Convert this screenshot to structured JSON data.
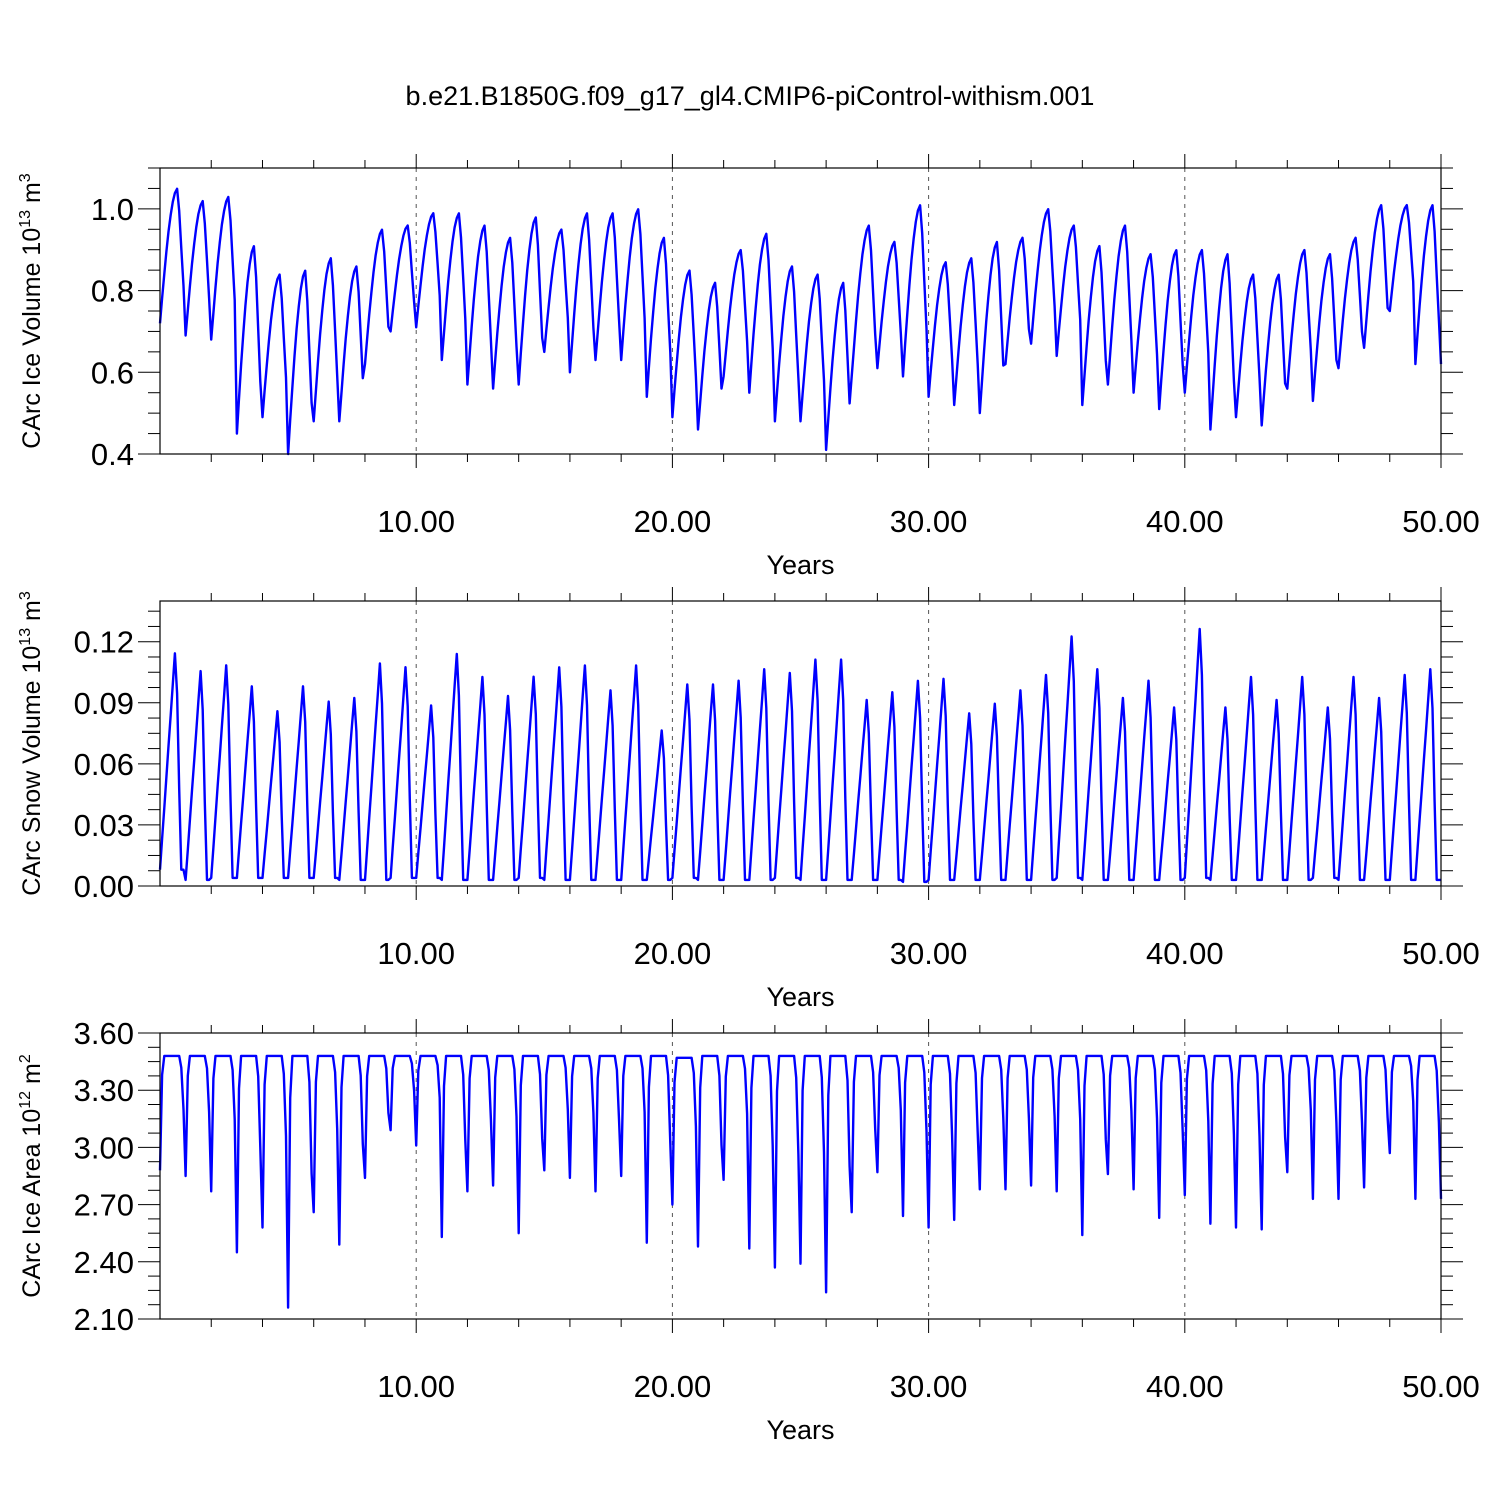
{
  "title": "b.e21.B1850G.f09_g17_gl4.CMIP6-piControl-withism.001",
  "colors": {
    "line": "#0000ff",
    "axis": "#000000",
    "grid": "#555555"
  },
  "chart_data": [
    {
      "type": "line",
      "ylabel": "CArc Ice Volume 10",
      "ylabel_exp": "13",
      "ylabel_unit": " m",
      "ylabel_unit_exp": "3",
      "xlabel": "Years",
      "xlim": [
        0,
        50
      ],
      "ylim": [
        0.4,
        1.1
      ],
      "x_ticks": [
        10,
        20,
        30,
        40,
        50
      ],
      "x_tick_labels": [
        "10.00",
        "20.00",
        "30.00",
        "40.00",
        "50.00"
      ],
      "y_ticks": [
        0.4,
        0.6,
        0.8,
        1.0
      ],
      "y_tick_labels": [
        "0.4",
        "0.6",
        "0.8",
        "1.0"
      ],
      "grid": "vertical dashed at major x ticks",
      "series": [
        {
          "x_start": 0,
          "x_step": 1,
          "annual_max": [
            1.05,
            1.02,
            1.03,
            0.91,
            0.84,
            0.85,
            0.88,
            0.86,
            0.95,
            0.96,
            0.99,
            0.99,
            0.96,
            0.93,
            0.98,
            0.95,
            0.99,
            0.99,
            1.0,
            0.93,
            0.85,
            0.82,
            0.9,
            0.94,
            0.86,
            0.84,
            0.82,
            0.96,
            0.92,
            1.01,
            0.87,
            0.88,
            0.92,
            0.93,
            1.0,
            0.96,
            0.91,
            0.96,
            0.89,
            0.9,
            0.9,
            0.89,
            0.84,
            0.84,
            0.9,
            0.89,
            0.93,
            1.01,
            1.01,
            1.01
          ],
          "annual_min": [
            0.72,
            0.69,
            0.68,
            0.45,
            0.49,
            0.4,
            0.48,
            0.48,
            0.62,
            0.7,
            0.71,
            0.63,
            0.57,
            0.56,
            0.57,
            0.65,
            0.6,
            0.63,
            0.63,
            0.54,
            0.49,
            0.46,
            0.59,
            0.55,
            0.48,
            0.48,
            0.41,
            0.59,
            0.61,
            0.59,
            0.54,
            0.52,
            0.5,
            0.62,
            0.67,
            0.64,
            0.52,
            0.57,
            0.55,
            0.51,
            0.55,
            0.46,
            0.49,
            0.47,
            0.56,
            0.53,
            0.61,
            0.66,
            0.75,
            0.62
          ]
        }
      ]
    },
    {
      "type": "line",
      "ylabel": "CArc Snow Volume 10",
      "ylabel_exp": "13",
      "ylabel_unit": " m",
      "ylabel_unit_exp": "3",
      "xlabel": "Years",
      "xlim": [
        0,
        50
      ],
      "ylim": [
        0,
        0.14
      ],
      "x_ticks": [
        10,
        20,
        30,
        40,
        50
      ],
      "x_tick_labels": [
        "10.00",
        "20.00",
        "30.00",
        "40.00",
        "50.00"
      ],
      "y_ticks": [
        0.0,
        0.03,
        0.06,
        0.09,
        0.12
      ],
      "y_tick_labels": [
        "0.00",
        "0.03",
        "0.06",
        "0.09",
        "0.12"
      ],
      "grid": "vertical dashed at major x ticks",
      "series": [
        {
          "x_start": 0,
          "x_step": 1,
          "annual_max": [
            0.121,
            0.112,
            0.115,
            0.104,
            0.091,
            0.104,
            0.096,
            0.098,
            0.116,
            0.114,
            0.094,
            0.121,
            0.109,
            0.099,
            0.109,
            0.114,
            0.115,
            0.102,
            0.115,
            0.081,
            0.105,
            0.105,
            0.107,
            0.113,
            0.111,
            0.118,
            0.118,
            0.097,
            0.101,
            0.107,
            0.108,
            0.09,
            0.095,
            0.102,
            0.11,
            0.13,
            0.113,
            0.098,
            0.107,
            0.093,
            0.134,
            0.093,
            0.109,
            0.097,
            0.109,
            0.093,
            0.109,
            0.098,
            0.11,
            0.113
          ],
          "annual_min": [
            0.008,
            0.003,
            0.004,
            0.004,
            0.004,
            0.004,
            0.004,
            0.003,
            0.003,
            0.004,
            0.004,
            0.003,
            0.003,
            0.003,
            0.004,
            0.003,
            0.003,
            0.003,
            0.003,
            0.003,
            0.004,
            0.003,
            0.003,
            0.003,
            0.004,
            0.003,
            0.003,
            0.003,
            0.003,
            0.002,
            0.003,
            0.003,
            0.003,
            0.003,
            0.003,
            0.004,
            0.003,
            0.003,
            0.003,
            0.003,
            0.004,
            0.003,
            0.003,
            0.003,
            0.003,
            0.004,
            0.003,
            0.003,
            0.003,
            0.003
          ]
        }
      ]
    },
    {
      "type": "line",
      "ylabel": "CArc Ice Area 10",
      "ylabel_exp": "12",
      "ylabel_unit": " m",
      "ylabel_unit_exp": "2",
      "xlabel": "Years",
      "xlim": [
        0,
        50
      ],
      "ylim": [
        2.1,
        3.6
      ],
      "x_ticks": [
        10,
        20,
        30,
        40,
        50
      ],
      "x_tick_labels": [
        "10.00",
        "20.00",
        "30.00",
        "40.00",
        "50.00"
      ],
      "y_ticks": [
        2.1,
        2.4,
        2.7,
        3.0,
        3.3,
        3.6
      ],
      "y_tick_labels": [
        "2.10",
        "2.40",
        "2.70",
        "3.00",
        "3.30",
        "3.60"
      ],
      "grid": "vertical dashed at major x ticks",
      "series": [
        {
          "x_start": 0,
          "x_step": 1,
          "annual_max": [
            3.48,
            3.48,
            3.48,
            3.48,
            3.48,
            3.48,
            3.48,
            3.48,
            3.48,
            3.48,
            3.48,
            3.48,
            3.48,
            3.48,
            3.48,
            3.48,
            3.48,
            3.48,
            3.48,
            3.48,
            3.47,
            3.48,
            3.48,
            3.48,
            3.48,
            3.48,
            3.48,
            3.48,
            3.48,
            3.48,
            3.48,
            3.48,
            3.48,
            3.48,
            3.48,
            3.48,
            3.48,
            3.48,
            3.48,
            3.48,
            3.48,
            3.48,
            3.48,
            3.48,
            3.48,
            3.48,
            3.48,
            3.48,
            3.48,
            3.48
          ],
          "annual_min": [
            2.88,
            2.85,
            2.77,
            2.45,
            2.58,
            2.16,
            2.66,
            2.49,
            2.84,
            3.09,
            3.01,
            2.53,
            2.77,
            2.8,
            2.55,
            2.88,
            2.84,
            2.77,
            2.85,
            2.5,
            2.7,
            2.48,
            2.83,
            2.47,
            2.37,
            2.39,
            2.24,
            2.66,
            2.87,
            2.64,
            2.58,
            2.62,
            2.78,
            2.78,
            2.8,
            2.77,
            2.54,
            2.86,
            2.78,
            2.63,
            2.75,
            2.6,
            2.58,
            2.57,
            2.87,
            2.73,
            2.73,
            2.79,
            2.97,
            2.73
          ]
        }
      ]
    }
  ]
}
